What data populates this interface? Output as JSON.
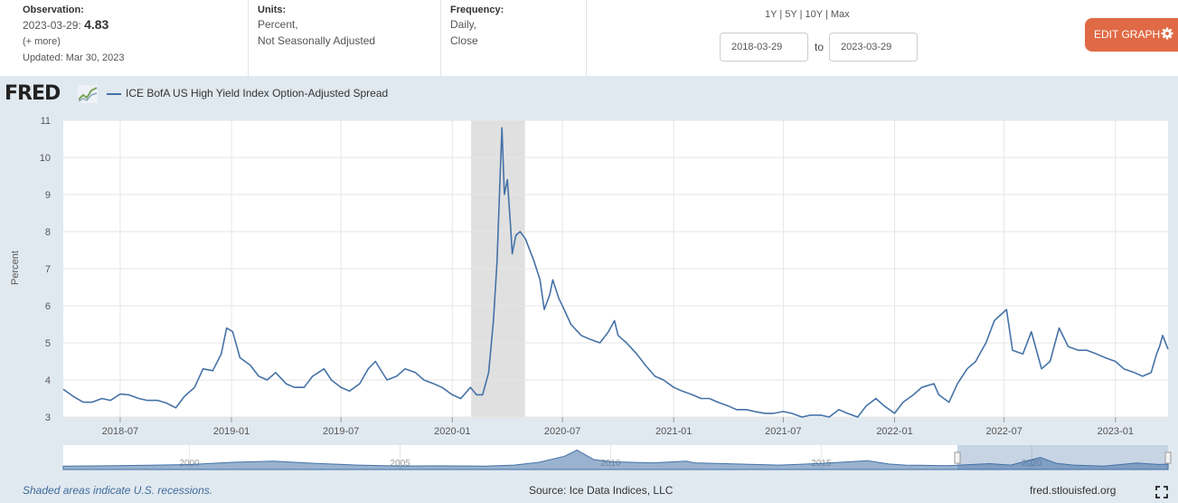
{
  "header": {
    "observation_label": "Observation:",
    "observation_date": "2023-03-29:",
    "observation_value": "4.83",
    "more": "(+ more)",
    "updated": "Updated: Mar 30, 2023",
    "units_label": "Units:",
    "units_line1": "Percent,",
    "units_line2": "Not Seasonally Adjusted",
    "frequency_label": "Frequency:",
    "frequency_line1": "Daily,",
    "frequency_line2": "Close"
  },
  "controls": {
    "range_1y": "1Y",
    "range_5y": "5Y",
    "range_10y": "10Y",
    "range_max": "Max",
    "sep": "|",
    "start_date": "2018-03-29",
    "to": "to",
    "end_date": "2023-03-29",
    "edit_graph": "EDIT GRAPH"
  },
  "logo": {
    "text": "FRED"
  },
  "footer": {
    "recession_note": "Shaded areas indicate U.S. recessions.",
    "source": "Source: Ice Data Indices, LLC",
    "site": "fred.stlouisfed.org"
  },
  "icons": {
    "edit": "gear-icon",
    "fullscreen": "fullscreen-icon",
    "logo": "fred-graph-icon"
  },
  "colors": {
    "series": "#4572a7",
    "recession": "#e0e0e0",
    "edit_button": "#e06a45",
    "navigator_fill": "#4572a7"
  },
  "chart_data": {
    "type": "line",
    "title": "",
    "xlabel": "",
    "ylabel": "Percent",
    "ylim": [
      3,
      11
    ],
    "xlim": [
      "2018-03-29",
      "2023-03-29"
    ],
    "y_ticks": [
      3,
      4,
      5,
      6,
      7,
      8,
      9,
      10,
      11
    ],
    "x_ticks": [
      "2018-07",
      "2019-01",
      "2019-07",
      "2020-01",
      "2020-07",
      "2021-01",
      "2021-07",
      "2022-01",
      "2022-07",
      "2023-01"
    ],
    "grid": true,
    "legend": "top-left",
    "recessions": [
      {
        "start": "2020-02-01",
        "end": "2020-04-30"
      }
    ],
    "series": [
      {
        "name": "ICE BofA US High Yield Index Option-Adjusted Spread",
        "x": [
          "2018-03-29",
          "2018-04-15",
          "2018-05-01",
          "2018-05-15",
          "2018-06-01",
          "2018-06-15",
          "2018-07-01",
          "2018-07-15",
          "2018-08-01",
          "2018-08-15",
          "2018-09-01",
          "2018-09-15",
          "2018-10-01",
          "2018-10-15",
          "2018-11-01",
          "2018-11-15",
          "2018-12-01",
          "2018-12-15",
          "2018-12-24",
          "2019-01-03",
          "2019-01-15",
          "2019-02-01",
          "2019-02-15",
          "2019-03-01",
          "2019-03-15",
          "2019-04-01",
          "2019-04-15",
          "2019-05-01",
          "2019-05-15",
          "2019-06-03",
          "2019-06-15",
          "2019-07-01",
          "2019-07-15",
          "2019-08-01",
          "2019-08-15",
          "2019-08-27",
          "2019-09-15",
          "2019-10-01",
          "2019-10-15",
          "2019-11-01",
          "2019-11-15",
          "2019-12-01",
          "2019-12-15",
          "2020-01-01",
          "2020-01-15",
          "2020-01-31",
          "2020-02-10",
          "2020-02-20",
          "2020-03-01",
          "2020-03-09",
          "2020-03-15",
          "2020-03-20",
          "2020-03-23",
          "2020-03-27",
          "2020-04-01",
          "2020-04-06",
          "2020-04-09",
          "2020-04-15",
          "2020-04-22",
          "2020-05-01",
          "2020-05-15",
          "2020-05-25",
          "2020-06-01",
          "2020-06-10",
          "2020-06-15",
          "2020-06-25",
          "2020-07-01",
          "2020-07-15",
          "2020-08-01",
          "2020-08-15",
          "2020-09-01",
          "2020-09-15",
          "2020-09-25",
          "2020-10-01",
          "2020-10-15",
          "2020-11-01",
          "2020-11-15",
          "2020-12-01",
          "2020-12-15",
          "2021-01-01",
          "2021-01-15",
          "2021-02-01",
          "2021-02-15",
          "2021-03-01",
          "2021-03-15",
          "2021-04-01",
          "2021-04-15",
          "2021-05-01",
          "2021-05-15",
          "2021-06-01",
          "2021-06-15",
          "2021-07-01",
          "2021-07-15",
          "2021-08-01",
          "2021-08-15",
          "2021-09-01",
          "2021-09-15",
          "2021-10-01",
          "2021-10-15",
          "2021-11-01",
          "2021-11-15",
          "2021-12-01",
          "2021-12-15",
          "2022-01-01",
          "2022-01-15",
          "2022-02-01",
          "2022-02-15",
          "2022-03-07",
          "2022-03-15",
          "2022-04-01",
          "2022-04-15",
          "2022-05-01",
          "2022-05-15",
          "2022-05-25",
          "2022-06-01",
          "2022-06-15",
          "2022-07-05",
          "2022-07-15",
          "2022-08-01",
          "2022-08-15",
          "2022-09-01",
          "2022-09-15",
          "2022-09-30",
          "2022-10-15",
          "2022-11-01",
          "2022-11-15",
          "2022-12-01",
          "2022-12-15",
          "2023-01-01",
          "2023-01-15",
          "2023-02-01",
          "2023-02-15",
          "2023-03-01",
          "2023-03-10",
          "2023-03-15",
          "2023-03-20",
          "2023-03-29"
        ],
        "y": [
          3.75,
          3.55,
          3.4,
          3.4,
          3.5,
          3.45,
          3.62,
          3.6,
          3.5,
          3.45,
          3.45,
          3.38,
          3.25,
          3.55,
          3.8,
          4.3,
          4.25,
          4.7,
          5.4,
          5.3,
          4.6,
          4.4,
          4.1,
          4.0,
          4.2,
          3.9,
          3.8,
          3.8,
          4.1,
          4.3,
          4.0,
          3.8,
          3.7,
          3.9,
          4.3,
          4.5,
          4.0,
          4.1,
          4.3,
          4.2,
          4.0,
          3.9,
          3.8,
          3.6,
          3.5,
          3.8,
          3.6,
          3.6,
          4.2,
          5.6,
          7.2,
          9.5,
          10.8,
          9.0,
          9.4,
          8.2,
          7.4,
          7.9,
          8.0,
          7.8,
          7.2,
          6.7,
          5.9,
          6.3,
          6.7,
          6.2,
          6.0,
          5.5,
          5.2,
          5.1,
          5.0,
          5.3,
          5.6,
          5.2,
          5.0,
          4.7,
          4.4,
          4.1,
          4.0,
          3.8,
          3.7,
          3.6,
          3.5,
          3.5,
          3.4,
          3.3,
          3.2,
          3.2,
          3.15,
          3.1,
          3.1,
          3.15,
          3.1,
          3.0,
          3.05,
          3.05,
          3.0,
          3.2,
          3.1,
          3.0,
          3.3,
          3.5,
          3.3,
          3.1,
          3.4,
          3.6,
          3.8,
          3.9,
          3.6,
          3.4,
          3.9,
          4.3,
          4.5,
          4.8,
          5.0,
          5.6,
          5.9,
          4.8,
          4.7,
          5.3,
          4.3,
          4.5,
          5.4,
          4.9,
          4.8,
          4.8,
          4.7,
          4.6,
          4.5,
          4.3,
          4.2,
          4.1,
          4.2,
          4.7,
          4.9,
          5.2,
          4.83
        ]
      }
    ]
  },
  "navigator": {
    "tick_labels": [
      "2000",
      "2005",
      "2010",
      "2015",
      "2020"
    ]
  }
}
